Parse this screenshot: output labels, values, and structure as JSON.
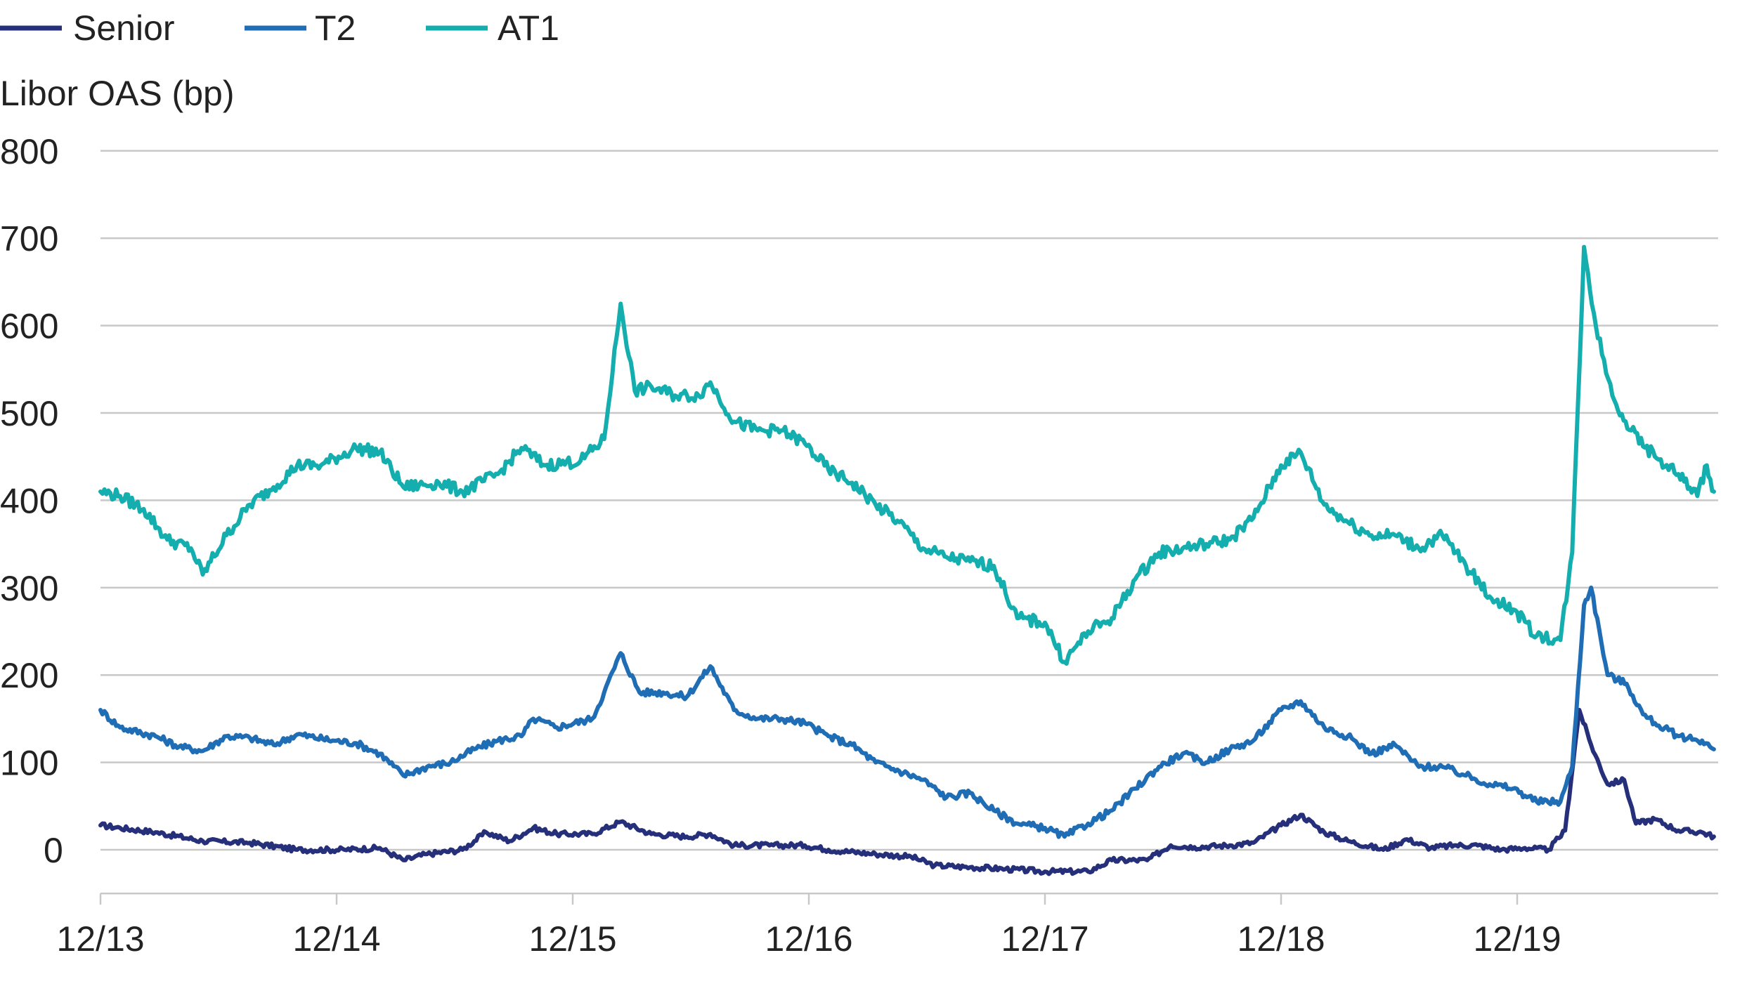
{
  "chart_data": {
    "type": "line",
    "ylabel": "Libor OAS (bp)",
    "ylim": [
      -50,
      800
    ],
    "yticks": [
      0,
      100,
      200,
      300,
      400,
      500,
      600,
      700,
      800
    ],
    "xlim": [
      2013.917,
      2020.75
    ],
    "xticks": [
      {
        "x": 2013.917,
        "label": "12/13"
      },
      {
        "x": 2014.917,
        "label": "12/14"
      },
      {
        "x": 2015.917,
        "label": "12/15"
      },
      {
        "x": 2016.917,
        "label": "12/16"
      },
      {
        "x": 2017.917,
        "label": "12/17"
      },
      {
        "x": 2018.917,
        "label": "12/18"
      },
      {
        "x": 2019.917,
        "label": "12/19"
      }
    ],
    "grid": true,
    "legend_position": "top-left",
    "series": [
      {
        "name": "Senior",
        "color": "#262f7a",
        "points": [
          [
            2013.917,
            28
          ],
          [
            2014.0,
            25
          ],
          [
            2014.15,
            20
          ],
          [
            2014.35,
            10
          ],
          [
            2014.55,
            8
          ],
          [
            2014.75,
            0
          ],
          [
            2014.95,
            0
          ],
          [
            2015.1,
            2
          ],
          [
            2015.2,
            -12
          ],
          [
            2015.3,
            -5
          ],
          [
            2015.45,
            0
          ],
          [
            2015.55,
            20
          ],
          [
            2015.65,
            10
          ],
          [
            2015.75,
            25
          ],
          [
            2015.85,
            18
          ],
          [
            2016.0,
            18
          ],
          [
            2016.12,
            32
          ],
          [
            2016.25,
            18
          ],
          [
            2016.4,
            15
          ],
          [
            2016.5,
            18
          ],
          [
            2016.6,
            5
          ],
          [
            2016.75,
            5
          ],
          [
            2016.9,
            5
          ],
          [
            2017.0,
            0
          ],
          [
            2017.2,
            -5
          ],
          [
            2017.35,
            -8
          ],
          [
            2017.45,
            -18
          ],
          [
            2017.6,
            -20
          ],
          [
            2017.75,
            -22
          ],
          [
            2017.917,
            -25
          ],
          [
            2018.1,
            -25
          ],
          [
            2018.2,
            -12
          ],
          [
            2018.35,
            -12
          ],
          [
            2018.45,
            5
          ],
          [
            2018.55,
            3
          ],
          [
            2018.7,
            5
          ],
          [
            2018.8,
            8
          ],
          [
            2018.917,
            28
          ],
          [
            2019.0,
            40
          ],
          [
            2019.1,
            20
          ],
          [
            2019.2,
            10
          ],
          [
            2019.35,
            0
          ],
          [
            2019.45,
            12
          ],
          [
            2019.55,
            2
          ],
          [
            2019.65,
            5
          ],
          [
            2019.75,
            5
          ],
          [
            2019.85,
            0
          ],
          [
            2019.95,
            2
          ],
          [
            2020.05,
            0
          ],
          [
            2020.12,
            22
          ],
          [
            2020.18,
            160
          ],
          [
            2020.23,
            120
          ],
          [
            2020.3,
            75
          ],
          [
            2020.37,
            80
          ],
          [
            2020.42,
            30
          ],
          [
            2020.5,
            35
          ],
          [
            2020.6,
            22
          ],
          [
            2020.7,
            20
          ],
          [
            2020.75,
            15
          ]
        ]
      },
      {
        "name": "T2",
        "color": "#1f6db5",
        "points": [
          [
            2013.917,
            160
          ],
          [
            2014.0,
            140
          ],
          [
            2014.15,
            130
          ],
          [
            2014.25,
            118
          ],
          [
            2014.35,
            113
          ],
          [
            2014.45,
            130
          ],
          [
            2014.55,
            128
          ],
          [
            2014.65,
            120
          ],
          [
            2014.75,
            132
          ],
          [
            2014.9,
            125
          ],
          [
            2015.0,
            122
          ],
          [
            2015.1,
            110
          ],
          [
            2015.2,
            85
          ],
          [
            2015.3,
            95
          ],
          [
            2015.4,
            100
          ],
          [
            2015.5,
            115
          ],
          [
            2015.6,
            125
          ],
          [
            2015.7,
            130
          ],
          [
            2015.75,
            150
          ],
          [
            2015.85,
            140
          ],
          [
            2016.0,
            150
          ],
          [
            2016.05,
            180
          ],
          [
            2016.12,
            225
          ],
          [
            2016.2,
            180
          ],
          [
            2016.3,
            180
          ],
          [
            2016.4,
            175
          ],
          [
            2016.5,
            210
          ],
          [
            2016.6,
            160
          ],
          [
            2016.7,
            150
          ],
          [
            2016.8,
            150
          ],
          [
            2016.9,
            145
          ],
          [
            2017.0,
            130
          ],
          [
            2017.1,
            120
          ],
          [
            2017.2,
            100
          ],
          [
            2017.3,
            90
          ],
          [
            2017.4,
            80
          ],
          [
            2017.5,
            60
          ],
          [
            2017.6,
            65
          ],
          [
            2017.7,
            45
          ],
          [
            2017.8,
            30
          ],
          [
            2017.917,
            25
          ],
          [
            2018.0,
            15
          ],
          [
            2018.1,
            30
          ],
          [
            2018.2,
            45
          ],
          [
            2018.3,
            70
          ],
          [
            2018.4,
            95
          ],
          [
            2018.5,
            110
          ],
          [
            2018.6,
            100
          ],
          [
            2018.7,
            115
          ],
          [
            2018.8,
            125
          ],
          [
            2018.917,
            160
          ],
          [
            2019.0,
            170
          ],
          [
            2019.1,
            140
          ],
          [
            2019.2,
            130
          ],
          [
            2019.3,
            110
          ],
          [
            2019.4,
            120
          ],
          [
            2019.5,
            95
          ],
          [
            2019.6,
            95
          ],
          [
            2019.7,
            85
          ],
          [
            2019.8,
            75
          ],
          [
            2019.9,
            70
          ],
          [
            2020.0,
            55
          ],
          [
            2020.1,
            55
          ],
          [
            2020.15,
            95
          ],
          [
            2020.2,
            280
          ],
          [
            2020.23,
            300
          ],
          [
            2020.3,
            200
          ],
          [
            2020.38,
            190
          ],
          [
            2020.45,
            155
          ],
          [
            2020.5,
            145
          ],
          [
            2020.6,
            130
          ],
          [
            2020.7,
            125
          ],
          [
            2020.75,
            115
          ]
        ]
      },
      {
        "name": "AT1",
        "color": "#15aeae",
        "points": [
          [
            2013.917,
            410
          ],
          [
            2014.0,
            405
          ],
          [
            2014.1,
            390
          ],
          [
            2014.2,
            355
          ],
          [
            2014.3,
            345
          ],
          [
            2014.35,
            315
          ],
          [
            2014.45,
            360
          ],
          [
            2014.55,
            395
          ],
          [
            2014.65,
            415
          ],
          [
            2014.75,
            440
          ],
          [
            2014.85,
            440
          ],
          [
            2015.0,
            460
          ],
          [
            2015.1,
            455
          ],
          [
            2015.2,
            415
          ],
          [
            2015.35,
            420
          ],
          [
            2015.45,
            410
          ],
          [
            2015.6,
            430
          ],
          [
            2015.7,
            460
          ],
          [
            2015.8,
            440
          ],
          [
            2015.95,
            445
          ],
          [
            2016.05,
            470
          ],
          [
            2016.12,
            625
          ],
          [
            2016.18,
            525
          ],
          [
            2016.25,
            530
          ],
          [
            2016.35,
            520
          ],
          [
            2016.45,
            520
          ],
          [
            2016.5,
            535
          ],
          [
            2016.6,
            490
          ],
          [
            2016.7,
            480
          ],
          [
            2016.8,
            480
          ],
          [
            2016.9,
            465
          ],
          [
            2017.0,
            435
          ],
          [
            2017.1,
            420
          ],
          [
            2017.2,
            395
          ],
          [
            2017.3,
            375
          ],
          [
            2017.4,
            345
          ],
          [
            2017.5,
            335
          ],
          [
            2017.6,
            330
          ],
          [
            2017.7,
            325
          ],
          [
            2017.8,
            265
          ],
          [
            2017.917,
            260
          ],
          [
            2018.0,
            215
          ],
          [
            2018.1,
            250
          ],
          [
            2018.2,
            265
          ],
          [
            2018.3,
            310
          ],
          [
            2018.4,
            340
          ],
          [
            2018.5,
            345
          ],
          [
            2018.6,
            350
          ],
          [
            2018.7,
            355
          ],
          [
            2018.8,
            380
          ],
          [
            2018.917,
            440
          ],
          [
            2019.0,
            455
          ],
          [
            2019.1,
            395
          ],
          [
            2019.2,
            375
          ],
          [
            2019.3,
            360
          ],
          [
            2019.4,
            360
          ],
          [
            2019.5,
            345
          ],
          [
            2019.6,
            360
          ],
          [
            2019.7,
            325
          ],
          [
            2019.8,
            290
          ],
          [
            2019.9,
            275
          ],
          [
            2020.0,
            245
          ],
          [
            2020.1,
            240
          ],
          [
            2020.15,
            340
          ],
          [
            2020.2,
            690
          ],
          [
            2020.25,
            600
          ],
          [
            2020.32,
            520
          ],
          [
            2020.4,
            480
          ],
          [
            2020.5,
            450
          ],
          [
            2020.6,
            430
          ],
          [
            2020.68,
            405
          ],
          [
            2020.72,
            440
          ],
          [
            2020.75,
            410
          ]
        ]
      }
    ]
  }
}
